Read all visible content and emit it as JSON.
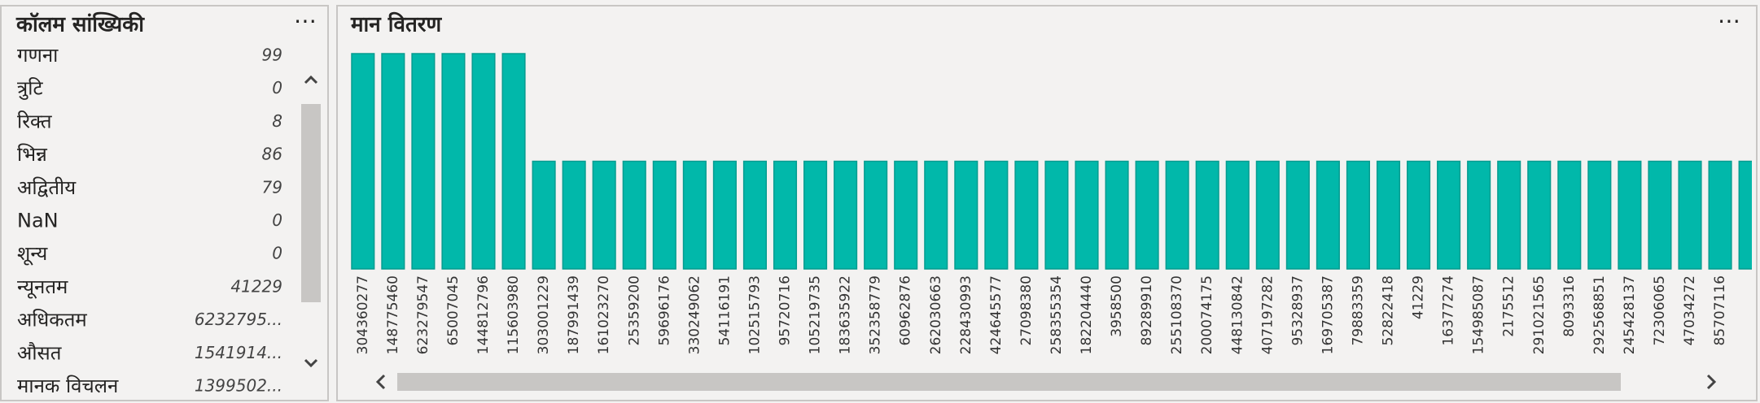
{
  "stats_panel": {
    "title": "कॉलम सांख्यिकी",
    "rows": [
      {
        "label": "गणना",
        "value": 99
      },
      {
        "label": "त्रुटि",
        "value": 0
      },
      {
        "label": "रिक्त",
        "value": 8
      },
      {
        "label": "भिन्न",
        "value": 86
      },
      {
        "label": "अद्वितीय",
        "value": 79
      },
      {
        "label": "NaN",
        "value": 0
      },
      {
        "label": "शून्य",
        "value": 0
      },
      {
        "label": "न्यूनतम",
        "value": 41229
      },
      {
        "label": "अधिकतम",
        "value": "6232795..."
      },
      {
        "label": "औसत",
        "value": "1541914..."
      },
      {
        "label": "मानक विचलन",
        "value": "1399502..."
      }
    ]
  },
  "chart_data": {
    "type": "bar",
    "title": "मान वितरण",
    "color": "#01b8aa",
    "categories": [
      "304360277",
      "148775460",
      "623279547",
      "65007045",
      "144812796",
      "115603980",
      "303001229",
      "187991439",
      "161023270",
      "25359200",
      "59696176",
      "330249062",
      "54116191",
      "102515793",
      "95720716",
      "105219735",
      "183635922",
      "352358779",
      "60962876",
      "262030663",
      "228430993",
      "424645577",
      "27098380",
      "258355354",
      "182204440",
      "3958500",
      "89289910",
      "255108370",
      "200074175",
      "448130842",
      "407197282",
      "95328937",
      "169705387",
      "79883359",
      "52822418",
      "41229",
      "16377274",
      "154985087",
      "2175512",
      "291021565",
      "8093316",
      "292568851",
      "245428137",
      "72306065",
      "47034272",
      "85707116",
      null
    ],
    "values": [
      2,
      2,
      2,
      2,
      2,
      2,
      1,
      1,
      1,
      1,
      1,
      1,
      1,
      1,
      1,
      1,
      1,
      1,
      1,
      1,
      1,
      1,
      1,
      1,
      1,
      1,
      1,
      1,
      1,
      1,
      1,
      1,
      1,
      1,
      1,
      1,
      1,
      1,
      1,
      1,
      1,
      1,
      1,
      1,
      1,
      1,
      1
    ]
  }
}
